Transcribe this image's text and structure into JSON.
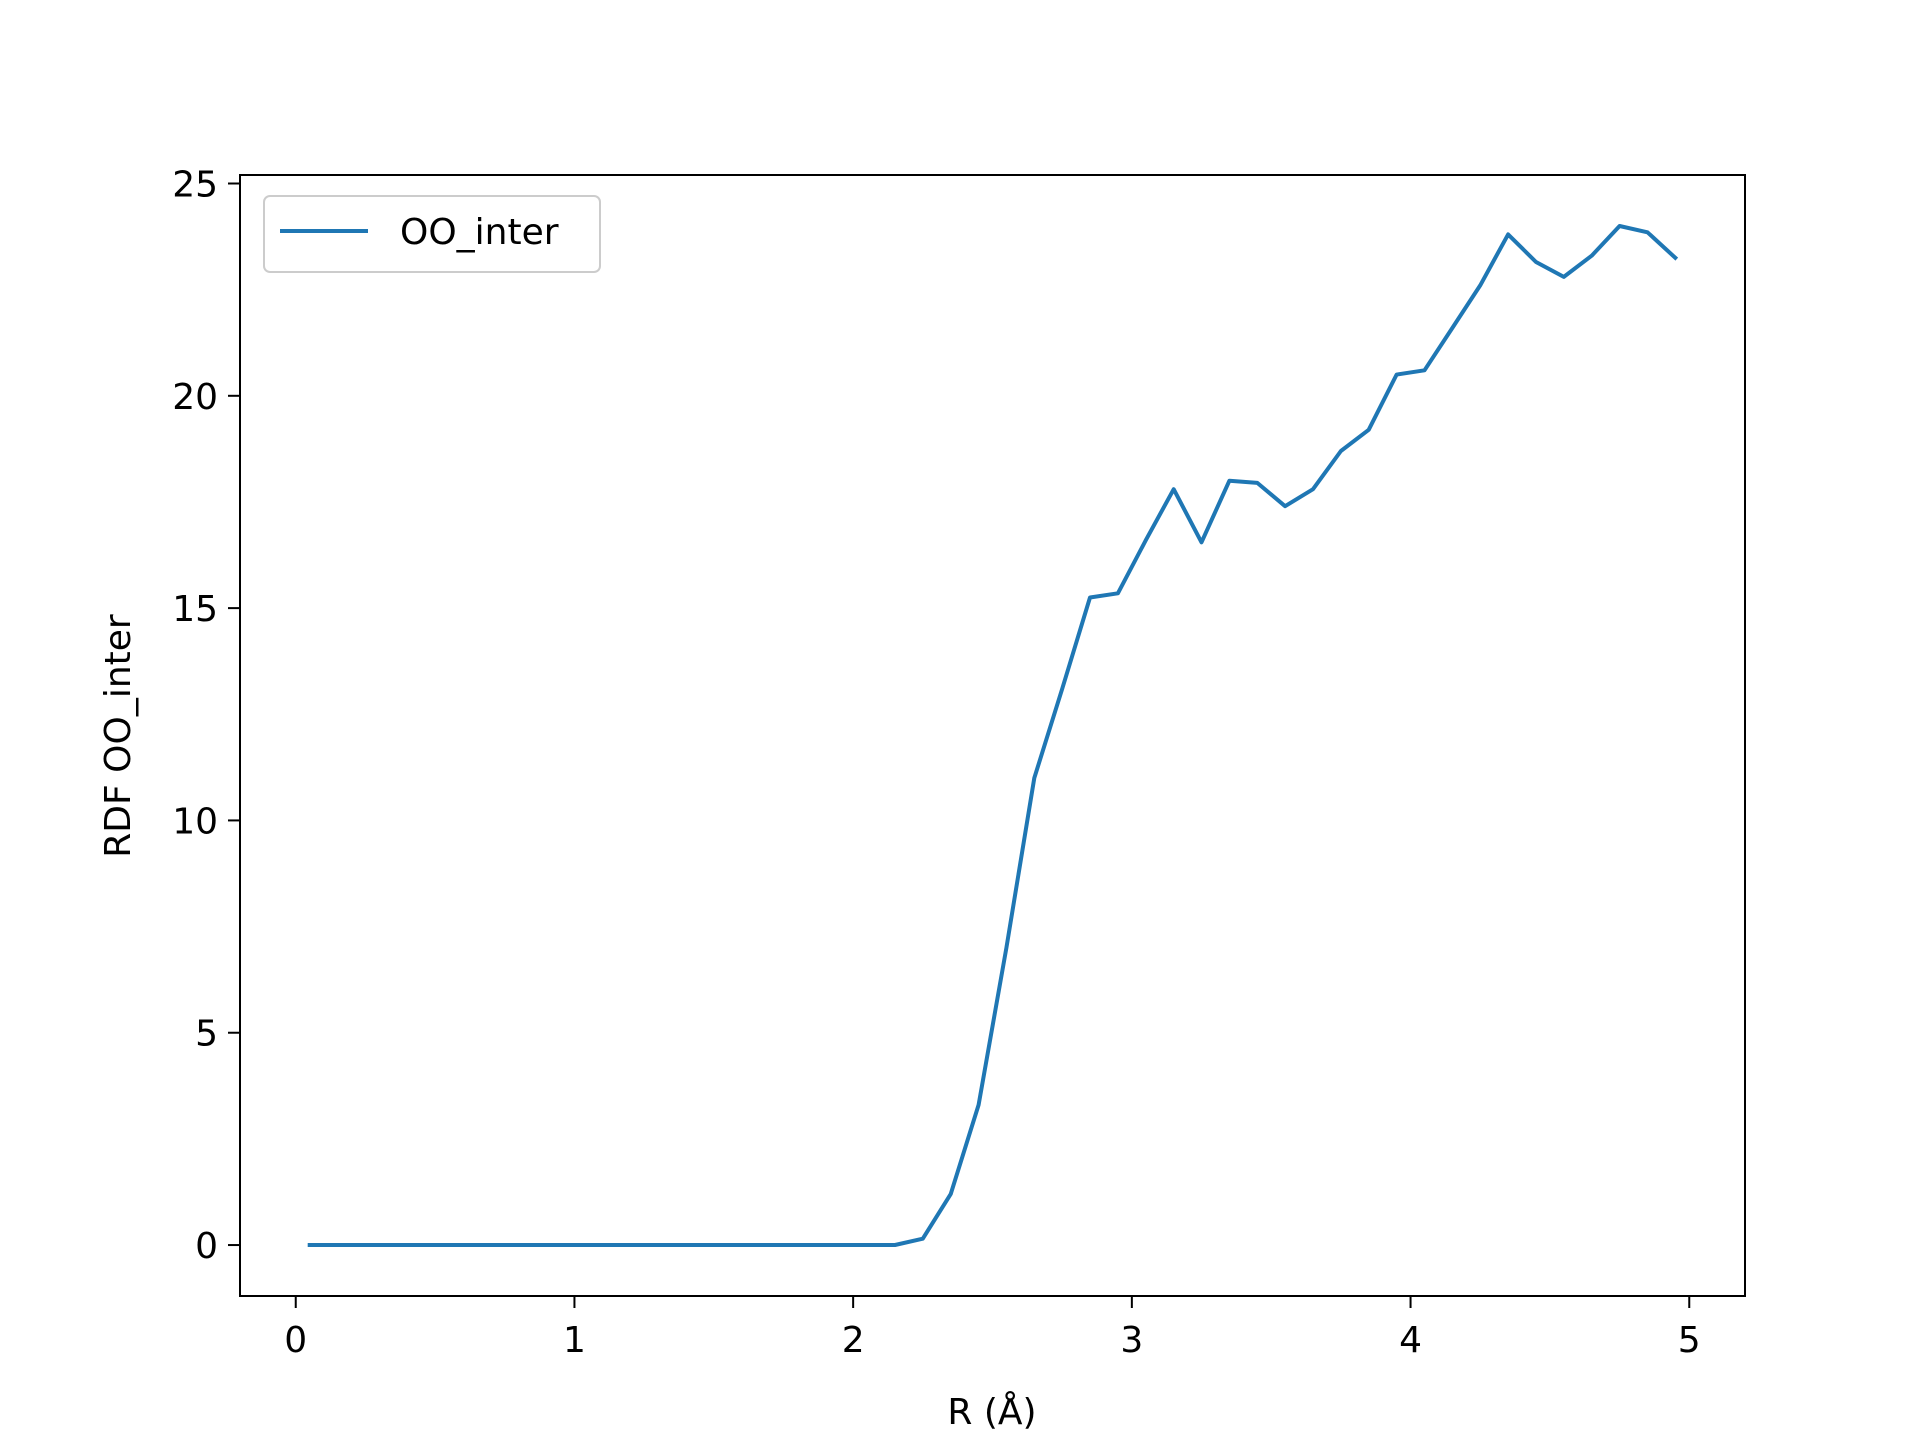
{
  "chart_data": {
    "type": "line",
    "title": "",
    "xlabel": "R (Å)",
    "ylabel": "RDF OO_inter",
    "xlim": [
      -0.2,
      5.2
    ],
    "ylim": [
      -1.2,
      25.2
    ],
    "xticks": [
      0,
      1,
      2,
      3,
      4,
      5
    ],
    "yticks": [
      0,
      5,
      10,
      15,
      20,
      25
    ],
    "grid": false,
    "legend_position": "top-left",
    "series": [
      {
        "name": "OO_inter",
        "color": "#1f77b4",
        "x": [
          0.05,
          0.15,
          0.25,
          0.35,
          0.45,
          0.55,
          0.65,
          0.75,
          0.85,
          0.95,
          1.05,
          1.15,
          1.25,
          1.35,
          1.45,
          1.55,
          1.65,
          1.75,
          1.85,
          1.95,
          2.05,
          2.15,
          2.25,
          2.35,
          2.45,
          2.55,
          2.65,
          2.75,
          2.85,
          2.95,
          3.05,
          3.15,
          3.25,
          3.35,
          3.45,
          3.55,
          3.65,
          3.75,
          3.85,
          3.95,
          4.05,
          4.15,
          4.25,
          4.35,
          4.45,
          4.55,
          4.65,
          4.75,
          4.85,
          4.95
        ],
        "y": [
          0,
          0,
          0,
          0,
          0,
          0,
          0,
          0,
          0,
          0,
          0,
          0,
          0,
          0,
          0,
          0,
          0,
          0,
          0,
          0,
          0,
          0,
          0.15,
          1.2,
          3.3,
          7.0,
          11.0,
          13.1,
          15.25,
          15.35,
          16.6,
          17.8,
          16.55,
          18.0,
          17.95,
          17.4,
          17.8,
          18.7,
          19.2,
          20.5,
          20.6,
          21.6,
          22.6,
          23.8,
          23.15,
          22.8,
          23.3,
          24.0,
          23.85,
          23.25
        ]
      }
    ]
  }
}
